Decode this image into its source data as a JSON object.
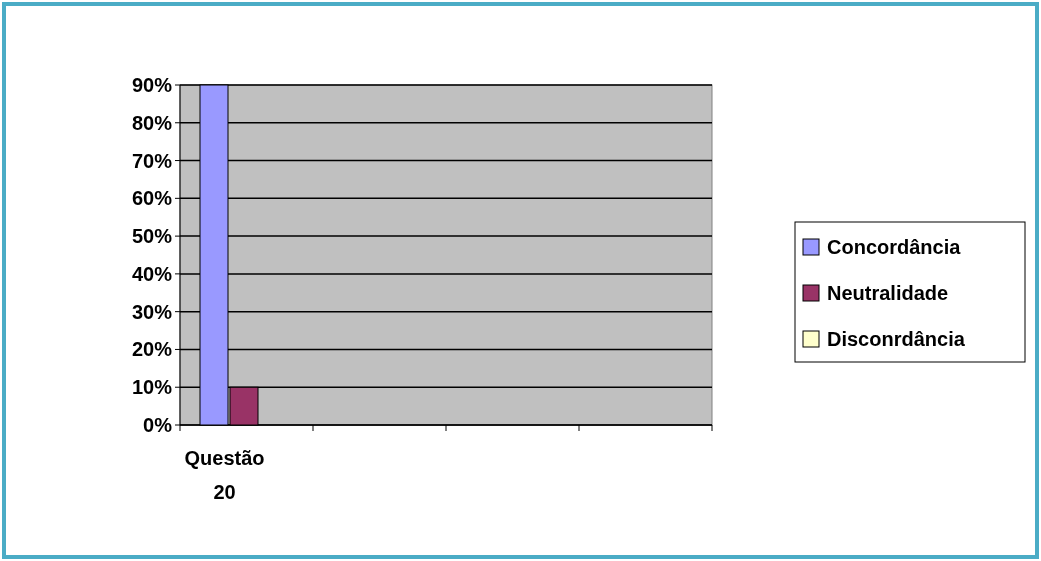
{
  "chart_data": {
    "type": "bar",
    "categories": [
      "Questão 20",
      null,
      null,
      null
    ],
    "series": [
      {
        "name": "Concordância",
        "color": "#9999ff",
        "values": [
          90,
          null,
          null,
          null
        ]
      },
      {
        "name": "Neutralidade",
        "color": "#993366",
        "values": [
          10,
          null,
          null,
          null
        ]
      },
      {
        "name": "Disconrdância",
        "color": "#ffffcc",
        "values": [
          0,
          null,
          null,
          null
        ]
      }
    ],
    "ylim": [
      0,
      90
    ],
    "yticks": [
      {
        "value": 0,
        "label": "0%"
      },
      {
        "value": 10,
        "label": "10%"
      },
      {
        "value": 20,
        "label": "20%"
      },
      {
        "value": 30,
        "label": "30%"
      },
      {
        "value": 40,
        "label": "40%"
      },
      {
        "value": 50,
        "label": "50%"
      },
      {
        "value": 60,
        "label": "60%"
      },
      {
        "value": 70,
        "label": "70%"
      },
      {
        "value": 80,
        "label": "80%"
      },
      {
        "value": 90,
        "label": "90%"
      }
    ],
    "grid": "y",
    "legend": "right"
  }
}
